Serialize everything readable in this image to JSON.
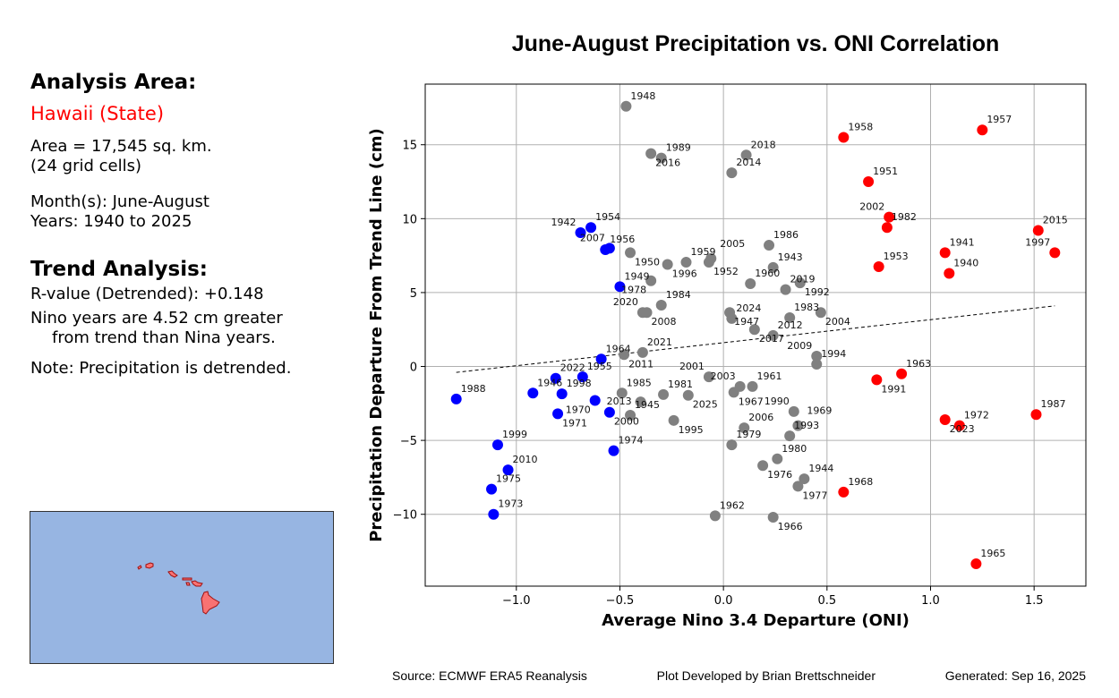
{
  "sidebar": {
    "analysis_heading": "Analysis Area:",
    "area_name": "Hawaii (State)",
    "area_size": "Area = 17,545 sq. km.",
    "grid_cells": "(24 grid cells)",
    "months": "Month(s): June-August",
    "years": "Years: 1940 to 2025",
    "trend_heading": "Trend Analysis:",
    "r_value": "R-value (Detrended): +0.148",
    "nino_line1": "Nino years are 4.52 cm greater",
    "nino_line2": "from trend than Nina years.",
    "note": "Note: Precipitation is detrended.",
    "area_color": "#ff0000",
    "map": {
      "ocean_color": "#97b5e2",
      "land_color": "#f87272"
    }
  },
  "footer": {
    "source": "Source: ECMWF ERA5 Reanalysis",
    "developer": "Plot Developed by Brian Brettschneider",
    "generated": "Generated: Sep 16, 2025"
  },
  "chart_data": {
    "type": "scatter",
    "title": "June-August Precipitation vs. ONI Correlation",
    "xlabel": "Average Nino 3.4 Departure (ONI)",
    "ylabel": "Precipitation Departure From Trend Line (cm)",
    "xlim": [
      -1.44,
      1.75
    ],
    "ylim": [
      -14.86,
      19.1
    ],
    "xticks": [
      "−1.0",
      "−0.5",
      "0.0",
      "0.5",
      "1.0",
      "1.5"
    ],
    "xtick_values": [
      -1.0,
      -0.5,
      0.0,
      0.5,
      1.0,
      1.5
    ],
    "yticks": [
      "−10",
      "−5",
      "0",
      "5",
      "10",
      "15"
    ],
    "ytick_values": [
      -10,
      -5,
      0,
      5,
      10,
      15
    ],
    "grid": true,
    "colors": {
      "nina": "#0000ff",
      "neutral": "#808080",
      "nino": "#ff0000"
    },
    "trend_line": {
      "x": [
        -1.29,
        1.6
      ],
      "y": [
        -0.4,
        4.1
      ],
      "style": "dashed"
    },
    "points": [
      {
        "year": "1940",
        "x": 1.09,
        "y": 6.3,
        "c": "nino"
      },
      {
        "year": "1941",
        "x": 1.07,
        "y": 7.7,
        "c": "nino"
      },
      {
        "year": "1942",
        "x": -0.69,
        "y": 9.05,
        "c": "nina"
      },
      {
        "year": "1943",
        "x": 0.24,
        "y": 6.7,
        "c": "neutral"
      },
      {
        "year": "1944",
        "x": 0.39,
        "y": -7.6,
        "c": "neutral"
      },
      {
        "year": "1945",
        "x": -0.45,
        "y": -3.3,
        "c": "neutral"
      },
      {
        "year": "1946",
        "x": -0.92,
        "y": -1.8,
        "c": "nina"
      },
      {
        "year": "1947",
        "x": 0.03,
        "y": 3.65,
        "c": "neutral"
      },
      {
        "year": "1948",
        "x": -0.47,
        "y": 17.6,
        "c": "neutral"
      },
      {
        "year": "1949",
        "x": -0.5,
        "y": 5.4,
        "c": "nina"
      },
      {
        "year": "1950",
        "x": -0.45,
        "y": 7.7,
        "c": "neutral"
      },
      {
        "year": "1951",
        "x": 0.7,
        "y": 12.5,
        "c": "nino"
      },
      {
        "year": "1952",
        "x": -0.07,
        "y": 7.05,
        "c": "neutral"
      },
      {
        "year": "1953",
        "x": 0.75,
        "y": 6.75,
        "c": "nino"
      },
      {
        "year": "1954",
        "x": -0.64,
        "y": 9.4,
        "c": "nina"
      },
      {
        "year": "1955",
        "x": -0.68,
        "y": -0.7,
        "c": "nina"
      },
      {
        "year": "1956",
        "x": -0.57,
        "y": 7.9,
        "c": "nina"
      },
      {
        "year": "1957",
        "x": 1.25,
        "y": 16.0,
        "c": "nino"
      },
      {
        "year": "1958",
        "x": 0.58,
        "y": 15.5,
        "c": "nino"
      },
      {
        "year": "1959",
        "x": -0.18,
        "y": 7.05,
        "c": "neutral"
      },
      {
        "year": "1960",
        "x": 0.13,
        "y": 5.6,
        "c": "neutral"
      },
      {
        "year": "1961",
        "x": 0.14,
        "y": -1.35,
        "c": "neutral"
      },
      {
        "year": "1962",
        "x": -0.04,
        "y": -10.1,
        "c": "neutral"
      },
      {
        "year": "1963",
        "x": 0.86,
        "y": -0.5,
        "c": "nino"
      },
      {
        "year": "1964",
        "x": -0.59,
        "y": 0.5,
        "c": "nina"
      },
      {
        "year": "1965",
        "x": 1.22,
        "y": -13.35,
        "c": "nino"
      },
      {
        "year": "1966",
        "x": 0.24,
        "y": -10.2,
        "c": "neutral"
      },
      {
        "year": "1967",
        "x": 0.05,
        "y": -1.75,
        "c": "neutral"
      },
      {
        "year": "1968",
        "x": 0.58,
        "y": -8.5,
        "c": "nino"
      },
      {
        "year": "1969",
        "x": 0.36,
        "y": -4.0,
        "c": "neutral"
      },
      {
        "year": "1970",
        "x": -0.62,
        "y": -2.3,
        "c": "nina"
      },
      {
        "year": "1971",
        "x": -0.8,
        "y": -3.2,
        "c": "nina"
      },
      {
        "year": "1972",
        "x": 1.14,
        "y": -4.0,
        "c": "nino"
      },
      {
        "year": "1973",
        "x": -1.11,
        "y": -10.0,
        "c": "nina"
      },
      {
        "year": "1974",
        "x": -0.53,
        "y": -5.7,
        "c": "nina"
      },
      {
        "year": "1975",
        "x": -1.12,
        "y": -8.3,
        "c": "nina"
      },
      {
        "year": "1976",
        "x": 0.19,
        "y": -6.7,
        "c": "neutral"
      },
      {
        "year": "1977",
        "x": 0.36,
        "y": -8.1,
        "c": "neutral"
      },
      {
        "year": "1978",
        "x": -0.35,
        "y": 5.8,
        "c": "neutral"
      },
      {
        "year": "1979",
        "x": 0.04,
        "y": -5.3,
        "c": "neutral"
      },
      {
        "year": "1980",
        "x": 0.26,
        "y": -6.25,
        "c": "neutral"
      },
      {
        "year": "1981",
        "x": -0.29,
        "y": -1.9,
        "c": "neutral"
      },
      {
        "year": "1982",
        "x": 0.79,
        "y": 9.4,
        "c": "nino"
      },
      {
        "year": "1983",
        "x": 0.32,
        "y": 3.3,
        "c": "neutral"
      },
      {
        "year": "1984",
        "x": -0.3,
        "y": 4.15,
        "c": "neutral"
      },
      {
        "year": "1985",
        "x": -0.49,
        "y": -1.8,
        "c": "neutral"
      },
      {
        "year": "1986",
        "x": 0.22,
        "y": 8.2,
        "c": "neutral"
      },
      {
        "year": "1987",
        "x": 1.51,
        "y": -3.25,
        "c": "nino"
      },
      {
        "year": "1988",
        "x": -1.29,
        "y": -2.2,
        "c": "nina"
      },
      {
        "year": "1989",
        "x": -0.3,
        "y": 14.1,
        "c": "neutral"
      },
      {
        "year": "1990",
        "x": 0.34,
        "y": -3.05,
        "c": "neutral"
      },
      {
        "year": "1991",
        "x": 0.74,
        "y": -0.9,
        "c": "nino"
      },
      {
        "year": "1992",
        "x": 0.37,
        "y": 5.65,
        "c": "neutral"
      },
      {
        "year": "1993",
        "x": 0.32,
        "y": -4.7,
        "c": "neutral"
      },
      {
        "year": "1994",
        "x": 0.45,
        "y": 0.15,
        "c": "neutral"
      },
      {
        "year": "1995",
        "x": -0.24,
        "y": -3.65,
        "c": "neutral"
      },
      {
        "year": "1996",
        "x": -0.27,
        "y": 6.9,
        "c": "neutral"
      },
      {
        "year": "1997",
        "x": 1.6,
        "y": 7.7,
        "c": "nino"
      },
      {
        "year": "1998",
        "x": -0.78,
        "y": -1.85,
        "c": "nina"
      },
      {
        "year": "1999",
        "x": -1.09,
        "y": -5.3,
        "c": "nina"
      },
      {
        "year": "2000",
        "x": -0.55,
        "y": -3.1,
        "c": "nina"
      },
      {
        "year": "2001",
        "x": -0.07,
        "y": -0.7,
        "c": "neutral"
      },
      {
        "year": "2002",
        "x": 0.8,
        "y": 10.1,
        "c": "nino"
      },
      {
        "year": "2003",
        "x": 0.08,
        "y": -1.35,
        "c": "neutral"
      },
      {
        "year": "2004",
        "x": 0.47,
        "y": 3.65,
        "c": "neutral"
      },
      {
        "year": "2005",
        "x": -0.06,
        "y": 7.3,
        "c": "neutral"
      },
      {
        "year": "2006",
        "x": 0.1,
        "y": -4.15,
        "c": "neutral"
      },
      {
        "year": "2007",
        "x": -0.55,
        "y": 8.0,
        "c": "nina"
      },
      {
        "year": "2008",
        "x": -0.37,
        "y": 3.65,
        "c": "neutral"
      },
      {
        "year": "2009",
        "x": 0.45,
        "y": 0.7,
        "c": "neutral"
      },
      {
        "year": "2010",
        "x": -1.04,
        "y": -7.0,
        "c": "nina"
      },
      {
        "year": "2011",
        "x": -0.48,
        "y": 0.8,
        "c": "neutral"
      },
      {
        "year": "2012",
        "x": 0.24,
        "y": 2.1,
        "c": "neutral"
      },
      {
        "year": "2013",
        "x": -0.4,
        "y": -2.4,
        "c": "neutral"
      },
      {
        "year": "2014",
        "x": 0.04,
        "y": 13.1,
        "c": "neutral"
      },
      {
        "year": "2015",
        "x": 1.52,
        "y": 9.2,
        "c": "nino"
      },
      {
        "year": "2016",
        "x": -0.35,
        "y": 14.4,
        "c": "neutral"
      },
      {
        "year": "2017",
        "x": 0.15,
        "y": 2.5,
        "c": "neutral"
      },
      {
        "year": "2018",
        "x": 0.11,
        "y": 14.3,
        "c": "neutral"
      },
      {
        "year": "2019",
        "x": 0.3,
        "y": 5.2,
        "c": "neutral"
      },
      {
        "year": "2020",
        "x": -0.39,
        "y": 3.65,
        "c": "neutral"
      },
      {
        "year": "2021",
        "x": -0.39,
        "y": 0.95,
        "c": "neutral"
      },
      {
        "year": "2022",
        "x": -0.81,
        "y": -0.8,
        "c": "nina"
      },
      {
        "year": "2023",
        "x": 1.07,
        "y": -3.6,
        "c": "nino"
      },
      {
        "year": "2024",
        "x": 0.04,
        "y": 3.25,
        "c": "neutral"
      },
      {
        "year": "2025",
        "x": -0.17,
        "y": -1.95,
        "c": "neutral"
      }
    ]
  }
}
